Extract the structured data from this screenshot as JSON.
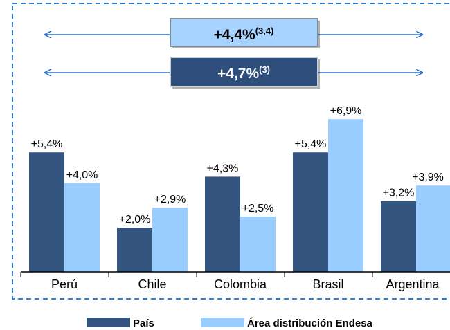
{
  "chart_data": {
    "type": "bar",
    "categories": [
      "Perú",
      "Chile",
      "Colombia",
      "Brasil",
      "Argentina"
    ],
    "series": [
      {
        "name": "País",
        "color": "#34557f",
        "values": [
          5.4,
          2.0,
          4.3,
          5.4,
          3.2
        ],
        "value_labels": [
          "+5,4%",
          "+2,0%",
          "+4,3%",
          "+5,4%",
          "+3,2%"
        ]
      },
      {
        "name": "Área distribución Endesa",
        "color": "#99ccff",
        "values": [
          4.0,
          2.9,
          2.5,
          6.9,
          3.9
        ],
        "value_labels": [
          "+4,0%",
          "+2,9%",
          "+2,5%",
          "+6,9%",
          "+3,9%"
        ]
      }
    ],
    "ylim": [
      0,
      7.5
    ],
    "annotations": [
      {
        "text": "+4,4%",
        "superscript": "(3,4)"
      },
      {
        "text": "+4,7%",
        "superscript": "(3)"
      }
    ]
  }
}
